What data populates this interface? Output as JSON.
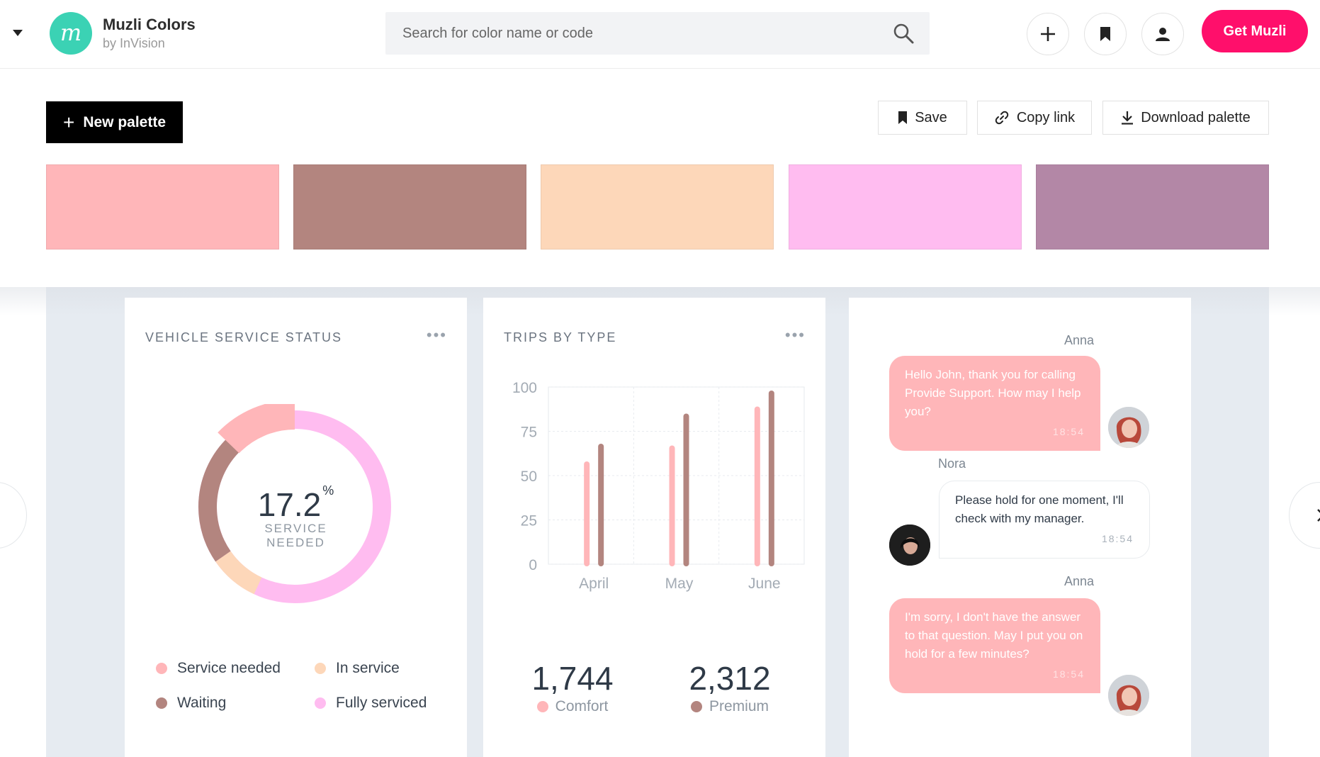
{
  "header": {
    "brand_name": "Muzli Colors",
    "brand_sub": "by InVision",
    "logo_letter": "m",
    "search_placeholder": "Search for color name or code",
    "cta_label": "Get Muzli",
    "accent": "#ff0f6b"
  },
  "toolbar": {
    "new_palette_label": "New palette",
    "save_label": "Save",
    "copy_link_label": "Copy link",
    "download_label": "Download palette"
  },
  "palette": {
    "colors": [
      "#ffb6b9",
      "#b3857f",
      "#fdd7b9",
      "#ffbcf0",
      "#b387a6"
    ]
  },
  "service_card": {
    "title": "VEHICLE SERVICE STATUS",
    "value": "17.2",
    "unit": "%",
    "label_line1": "SERVICE",
    "label_line2": "NEEDED",
    "legend": [
      {
        "label": "Service needed",
        "color": "#ffb6b9"
      },
      {
        "label": "In service",
        "color": "#fdd7b9"
      },
      {
        "label": "Waiting",
        "color": "#b3857f"
      },
      {
        "label": "Fully serviced",
        "color": "#ffbcf0"
      }
    ]
  },
  "trips_card": {
    "title": "TRIPS BY TYPE",
    "stat1_value": "1,744",
    "stat1_label": "Comfort",
    "stat2_value": "2,312",
    "stat2_label": "Premium"
  },
  "chart_data": {
    "type": "bar",
    "categories": [
      "April",
      "May",
      "June"
    ],
    "series": [
      {
        "name": "Comfort",
        "values": [
          58,
          67,
          89
        ],
        "color": "#ffb6b9"
      },
      {
        "name": "Premium",
        "values": [
          68,
          85,
          98
        ],
        "color": "#b3857f"
      }
    ],
    "yticks": [
      0,
      25,
      50,
      75,
      100
    ],
    "ylim": [
      0,
      100
    ],
    "grid": true
  },
  "chat": {
    "messages": [
      {
        "name": "Anna",
        "text": "Hello John, thank you for calling Provide Support. How may I help you?",
        "time": "18:54"
      },
      {
        "name": "Nora",
        "text": "Please hold for one moment, I'll check with my manager.",
        "time": "18:54"
      },
      {
        "name": "Anna",
        "text": "I'm sorry, I don't have the answer to that question. May I put you on hold for a few minutes?",
        "time": "18:54"
      }
    ]
  }
}
